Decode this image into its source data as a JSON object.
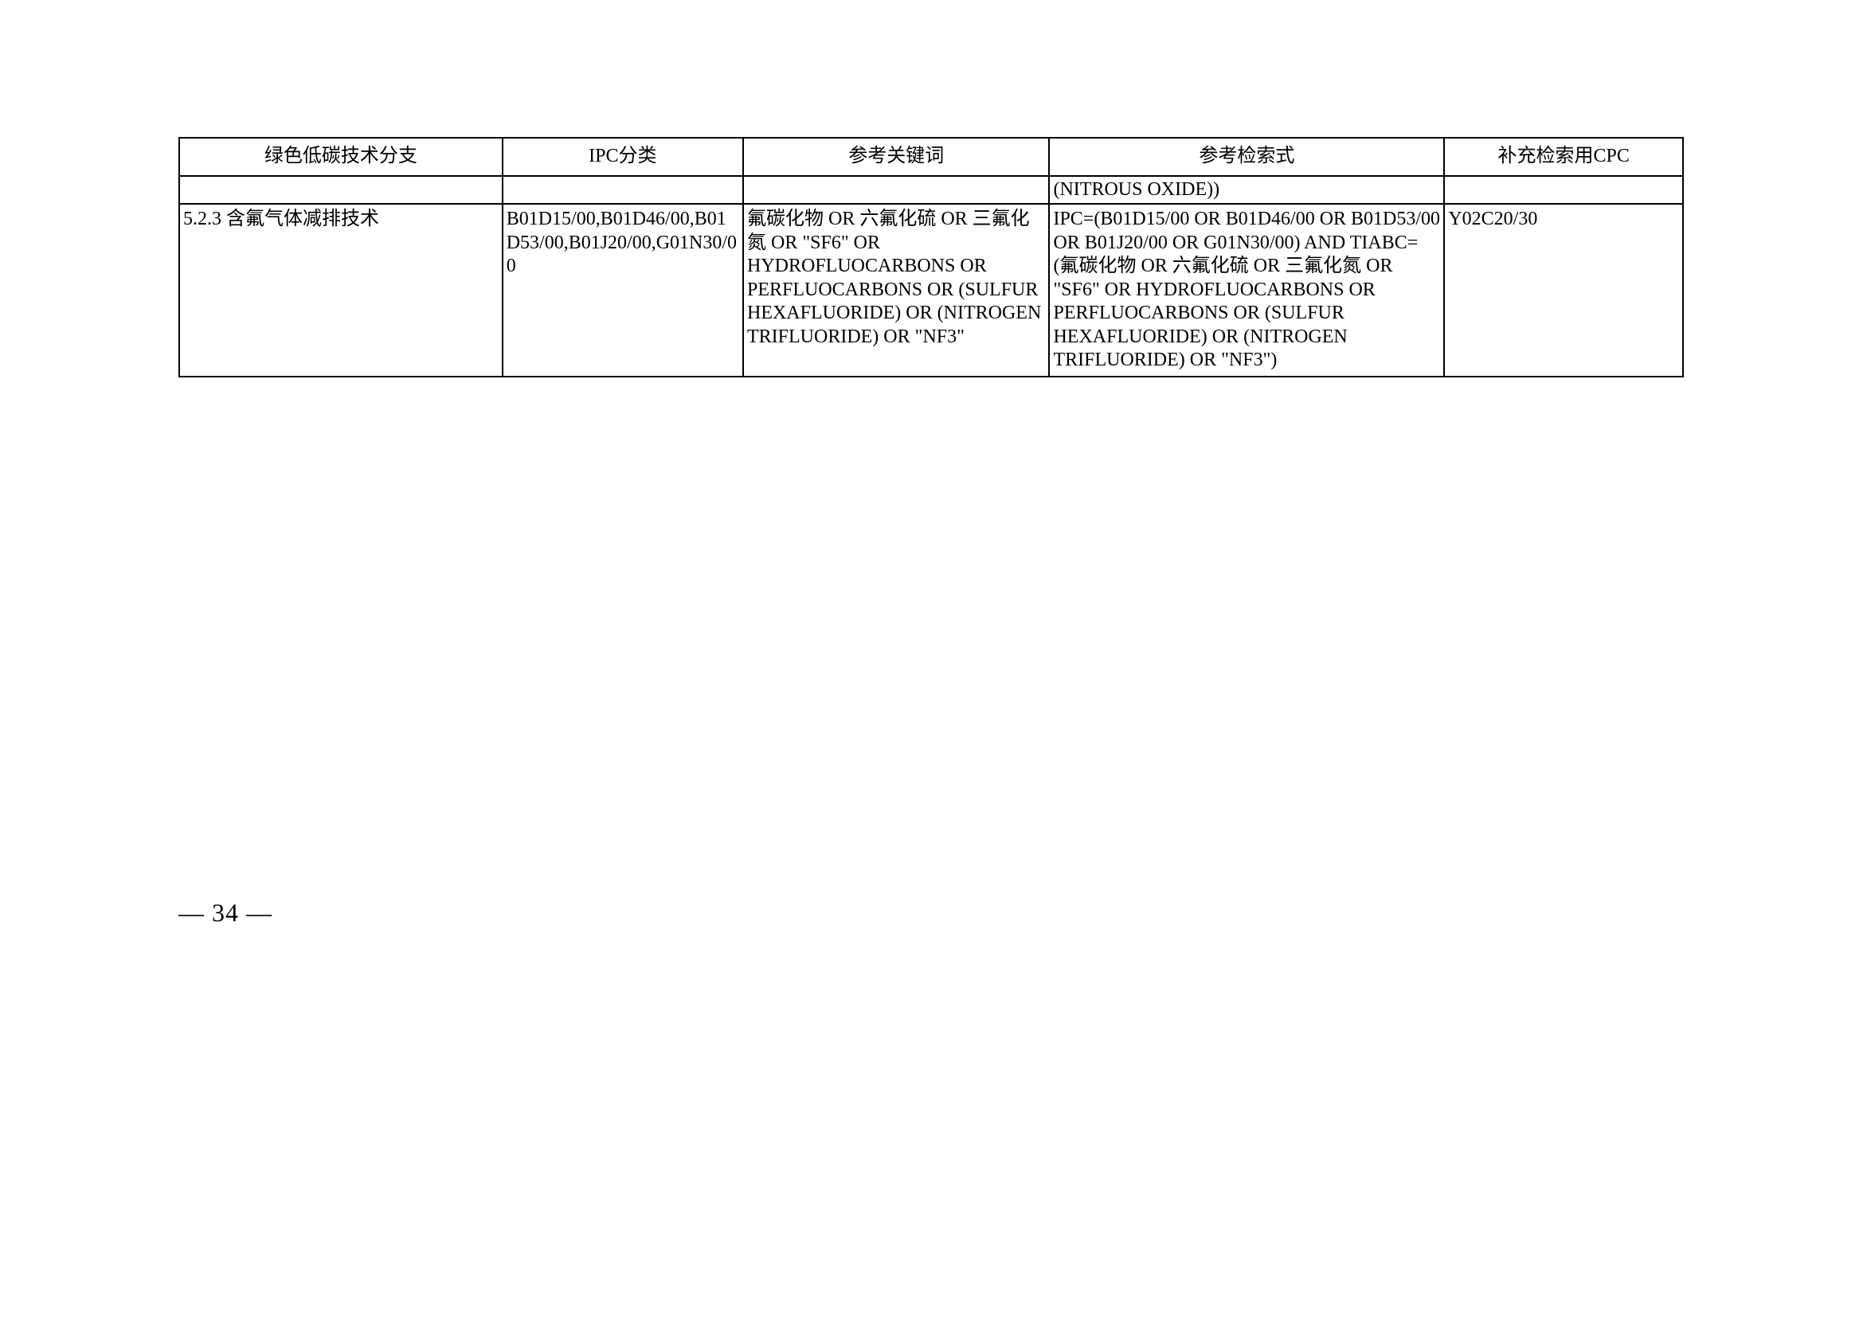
{
  "table": {
    "headers": [
      "绿色低碳技术分支",
      "IPC分类",
      "参考关键词",
      "参考检索式",
      "补充检索用CPC"
    ],
    "spacer_row": {
      "c0": "",
      "c1": "",
      "c2": "",
      "c3": "(NITROUS OXIDE))",
      "c4": ""
    },
    "row": {
      "c0": "5.2.3  含氟气体减排技术",
      "c1": "B01D15/00,B01D46/00,B01D53/00,B01J20/00,G01N30/00",
      "c2": "氟碳化物  OR  六氟化硫 OR  三氟化氮  OR \"SF6\" OR HYDROFLUOCARBONS OR PERFLUOCARBONS OR (SULFUR HEXAFLUORIDE) OR (NITROGEN TRIFLUORIDE) OR \"NF3\"",
      "c3": "IPC=(B01D15/00 OR B01D46/00 OR B01D53/00 OR B01J20/00 OR G01N30/00) AND TIABC=(氟碳化物  OR  六氟化硫  OR  三氟化氮 OR \"SF6\" OR HYDROFLUOCARBONS OR PERFLUOCARBONS OR (SULFUR HEXAFLUORIDE) OR (NITROGEN TRIFLUORIDE) OR \"NF3\")",
      "c4": "Y02C20/30"
    }
  },
  "page_number": "—  34  —"
}
